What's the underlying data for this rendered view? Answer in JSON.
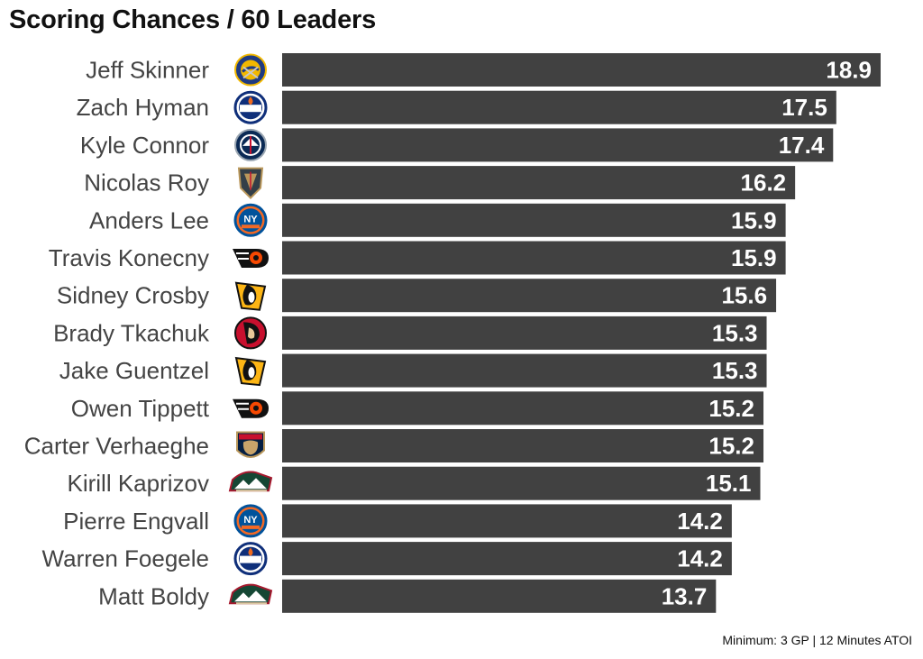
{
  "title": "Scoring Chances / 60 Leaders",
  "caption": "Minimum: 3 GP | 12 Minutes ATOI",
  "colors": {
    "bar": "#414141",
    "label_text": "#444444",
    "value_text": "#ffffff"
  },
  "chart_data": {
    "type": "bar",
    "orientation": "horizontal",
    "title": "Scoring Chances / 60 Leaders",
    "categories": [
      "Jeff Skinner",
      "Zach Hyman",
      "Kyle Connor",
      "Nicolas Roy",
      "Anders Lee",
      "Travis Konecny",
      "Sidney Crosby",
      "Brady Tkachuk",
      "Jake Guentzel",
      "Owen Tippett",
      "Carter Verhaeghe",
      "Kirill Kaprizov",
      "Pierre Engvall",
      "Warren Foegele",
      "Matt Boldy"
    ],
    "values": [
      18.9,
      17.5,
      17.4,
      16.2,
      15.9,
      15.9,
      15.6,
      15.3,
      15.3,
      15.2,
      15.2,
      15.1,
      14.2,
      14.2,
      13.7
    ],
    "value_labels": [
      "18.9",
      "17.5",
      "17.4",
      "16.2",
      "15.9",
      "15.9",
      "15.6",
      "15.3",
      "15.3",
      "15.2",
      "15.2",
      "15.1",
      "14.2",
      "14.2",
      "13.7"
    ],
    "team_logos": [
      "sabres-logo-icon",
      "oilers-logo-icon",
      "jets-logo-icon",
      "golden-knights-logo-icon",
      "islanders-logo-icon",
      "flyers-logo-icon",
      "penguins-logo-icon",
      "senators-logo-icon",
      "penguins-logo-icon",
      "flyers-logo-icon",
      "panthers-logo-icon",
      "wild-logo-icon",
      "islanders-logo-icon",
      "oilers-logo-icon",
      "wild-logo-icon"
    ],
    "xlim": [
      0,
      18.9
    ],
    "grid": false,
    "legend": "none"
  }
}
